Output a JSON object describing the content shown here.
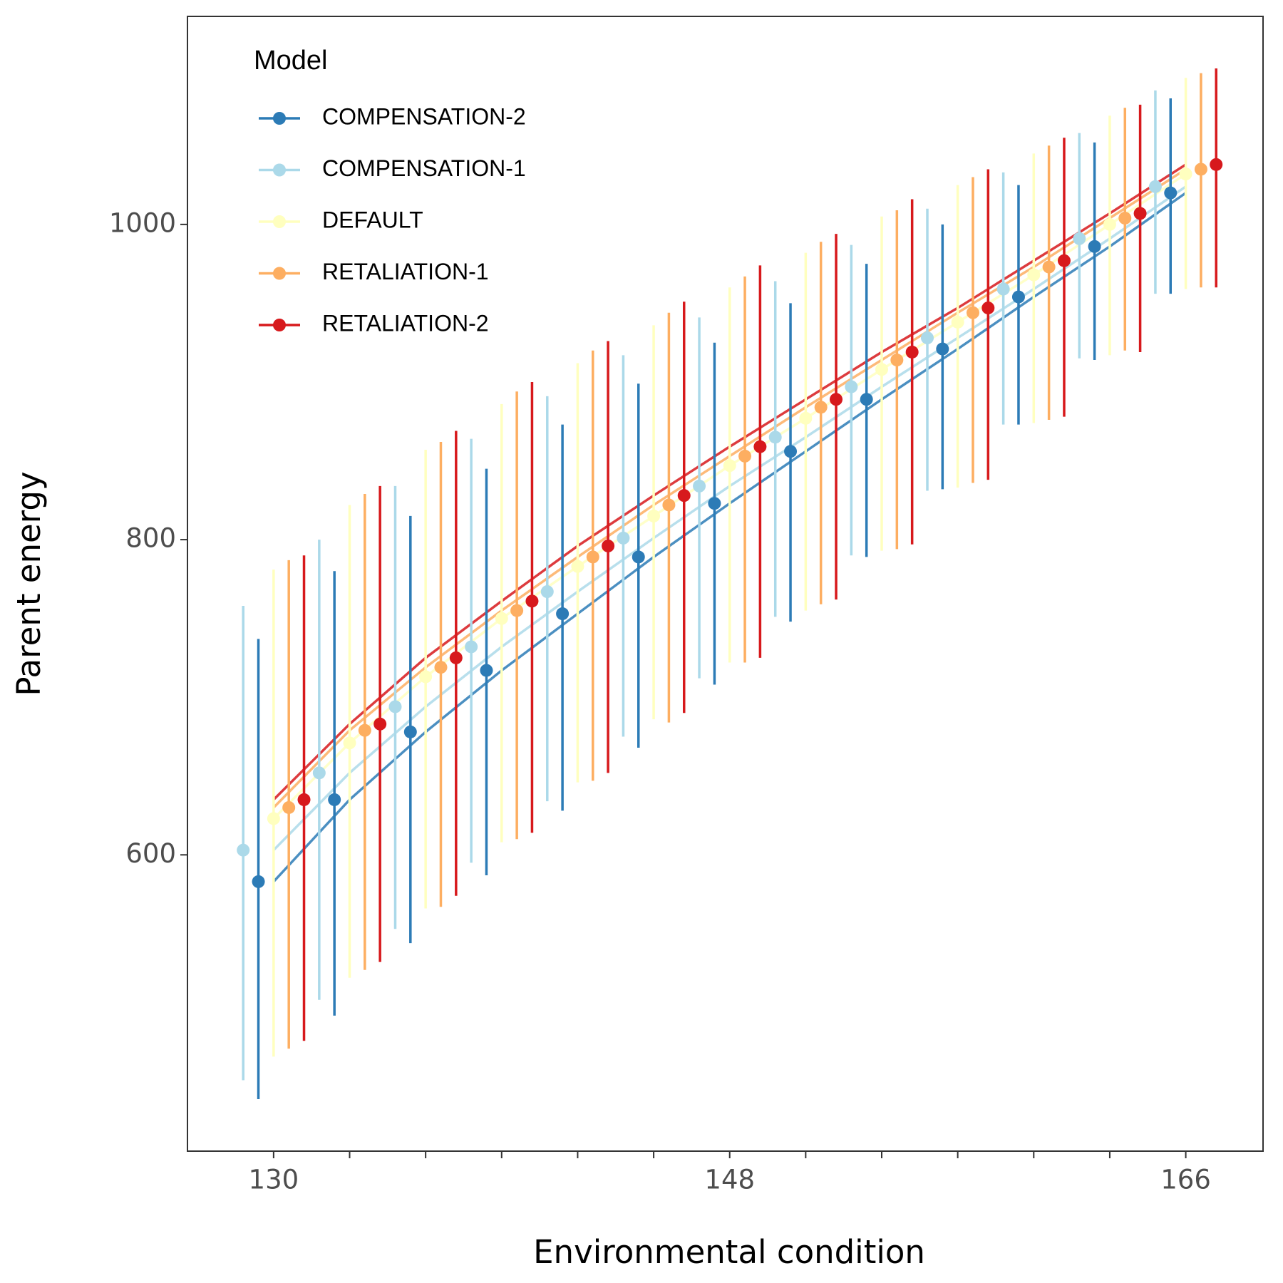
{
  "chart_data": {
    "type": "dodged-errorbar-line",
    "x_label": "Environmental condition",
    "y_label": "Parent energy",
    "legend_title": "Model",
    "legend": "top-left",
    "x": [
      130,
      133,
      136,
      139,
      142,
      145,
      148,
      151,
      154,
      157,
      160,
      163,
      166
    ],
    "xlim": [
      126.6,
      169.05
    ],
    "xticks": [
      130,
      148,
      166
    ],
    "xminor": [
      133,
      136,
      139,
      142,
      145,
      151,
      154,
      157,
      160,
      163
    ],
    "ylim": [
      412,
      1132
    ],
    "yticks": [
      600,
      800,
      1000
    ],
    "series": [
      {
        "name": "COMPENSATION-2",
        "color": "#2c7bb6",
        "values": [
          583,
          635,
          678,
          717,
          753,
          789,
          823,
          856,
          889,
          921,
          954,
          986,
          1020
        ],
        "lower": [
          445,
          498,
          544,
          587,
          628,
          668,
          708,
          748,
          789,
          832,
          873,
          914,
          956
        ],
        "upper": [
          737,
          780,
          815,
          845,
          873,
          899,
          925,
          950,
          975,
          1000,
          1025,
          1052,
          1080
        ]
      },
      {
        "name": "COMPENSATION-1",
        "color": "#abd9e9",
        "values": [
          603,
          652,
          694,
          732,
          767,
          801,
          834,
          865,
          897,
          928,
          959,
          991,
          1024
        ],
        "lower": [
          457,
          508,
          553,
          595,
          634,
          675,
          712,
          751,
          790,
          831,
          873,
          915,
          956
        ],
        "upper": [
          758,
          800,
          834,
          864,
          891,
          917,
          941,
          964,
          987,
          1010,
          1033,
          1058,
          1085
        ]
      },
      {
        "name": "DEFAULT",
        "color": "#ffffbf",
        "values": [
          623,
          671,
          713,
          750,
          783,
          815,
          847,
          877,
          908,
          938,
          968,
          1000,
          1032
        ],
        "lower": [
          472,
          522,
          566,
          608,
          646,
          686,
          722,
          755,
          793,
          833,
          874,
          917,
          959
        ],
        "upper": [
          781,
          822,
          857,
          886,
          912,
          936,
          960,
          982,
          1005,
          1025,
          1045,
          1069,
          1093
        ]
      },
      {
        "name": "RETALIATION-1",
        "color": "#fdae61",
        "values": [
          630,
          679,
          719,
          755,
          789,
          822,
          853,
          884,
          914,
          944,
          973,
          1004,
          1035
        ],
        "lower": [
          477,
          527,
          567,
          610,
          647,
          684,
          722,
          759,
          794,
          836,
          876,
          920,
          960
        ],
        "upper": [
          787,
          829,
          862,
          894,
          920,
          944,
          967,
          989,
          1009,
          1030,
          1050,
          1074,
          1096
        ]
      },
      {
        "name": "RETALIATION-2",
        "color": "#d7191c",
        "values": [
          635,
          683,
          725,
          761,
          796,
          828,
          859,
          889,
          919,
          947,
          977,
          1007,
          1038
        ],
        "lower": [
          482,
          532,
          574,
          614,
          652,
          690,
          725,
          762,
          797,
          838,
          878,
          919,
          960
        ],
        "upper": [
          790,
          834,
          869,
          900,
          926,
          951,
          974,
          994,
          1016,
          1035,
          1055,
          1076,
          1099
        ]
      }
    ]
  }
}
